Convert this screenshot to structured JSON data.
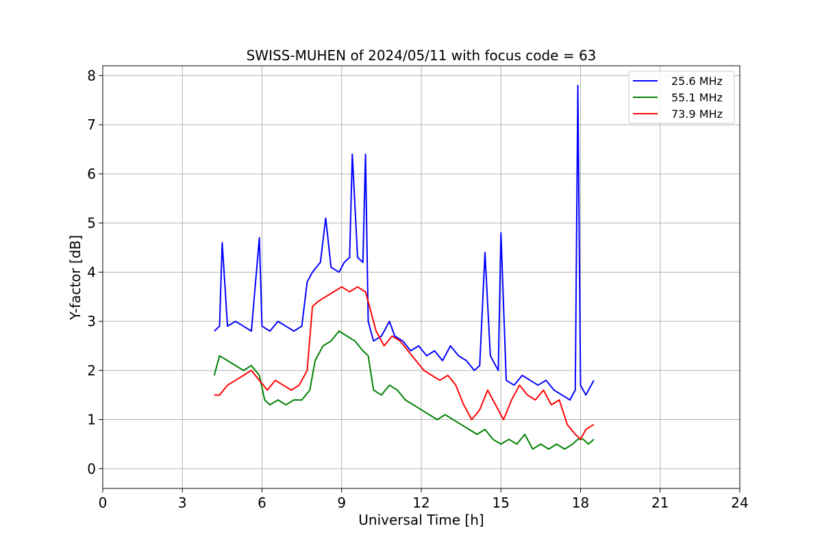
{
  "chart_data": {
    "type": "line",
    "title": "SWISS-MUHEN of 2024/05/11 with focus code = 63",
    "xlabel": "Universal Time [h]",
    "ylabel": "Y-factor [dB]",
    "xlim": [
      0,
      24
    ],
    "ylim": [
      -0.4,
      8.2
    ],
    "xticks": [
      0,
      3,
      6,
      9,
      12,
      15,
      18,
      21,
      24
    ],
    "yticks": [
      0,
      1,
      2,
      3,
      4,
      5,
      6,
      7,
      8
    ],
    "xtick_labels": [
      "0",
      "3",
      "6",
      "9",
      "12",
      "15",
      "18",
      "21",
      "24"
    ],
    "ytick_labels": [
      "0",
      "1",
      "2",
      "3",
      "4",
      "5",
      "6",
      "7",
      "8"
    ],
    "grid": true,
    "legend_position": "top-right",
    "series": [
      {
        "name": "25.6 MHz",
        "color": "#0000ff",
        "x": [
          4.2,
          4.4,
          4.5,
          4.7,
          5.0,
          5.3,
          5.6,
          5.9,
          6.0,
          6.3,
          6.6,
          6.9,
          7.2,
          7.5,
          7.7,
          7.9,
          8.2,
          8.4,
          8.6,
          8.9,
          9.1,
          9.3,
          9.4,
          9.6,
          9.8,
          9.9,
          10.0,
          10.2,
          10.5,
          10.8,
          11.0,
          11.3,
          11.6,
          11.9,
          12.2,
          12.5,
          12.8,
          13.1,
          13.4,
          13.7,
          14.0,
          14.2,
          14.4,
          14.6,
          14.9,
          15.0,
          15.2,
          15.5,
          15.8,
          16.1,
          16.4,
          16.7,
          17.0,
          17.3,
          17.6,
          17.8,
          17.9,
          18.0,
          18.2,
          18.5
        ],
        "y": [
          2.8,
          2.9,
          4.6,
          2.9,
          3.0,
          2.9,
          2.8,
          4.7,
          2.9,
          2.8,
          3.0,
          2.9,
          2.8,
          2.9,
          3.8,
          4.0,
          4.2,
          5.1,
          4.1,
          4.0,
          4.2,
          4.3,
          6.4,
          4.3,
          4.2,
          6.4,
          3.0,
          2.6,
          2.7,
          3.0,
          2.7,
          2.6,
          2.4,
          2.5,
          2.3,
          2.4,
          2.2,
          2.5,
          2.3,
          2.2,
          2.0,
          2.1,
          4.4,
          2.3,
          2.0,
          4.8,
          1.8,
          1.7,
          1.9,
          1.8,
          1.7,
          1.8,
          1.6,
          1.5,
          1.4,
          1.6,
          7.8,
          1.7,
          1.5,
          1.8
        ]
      },
      {
        "name": "55.1 MHz",
        "color": "#008000",
        "x": [
          4.2,
          4.4,
          4.7,
          5.0,
          5.3,
          5.6,
          5.9,
          6.1,
          6.3,
          6.6,
          6.9,
          7.2,
          7.5,
          7.8,
          8.0,
          8.3,
          8.6,
          8.9,
          9.2,
          9.5,
          9.8,
          10.0,
          10.2,
          10.5,
          10.8,
          11.1,
          11.4,
          11.7,
          12.0,
          12.3,
          12.6,
          12.9,
          13.2,
          13.5,
          13.8,
          14.1,
          14.4,
          14.7,
          15.0,
          15.3,
          15.6,
          15.9,
          16.2,
          16.5,
          16.8,
          17.1,
          17.4,
          17.7,
          17.9,
          18.1,
          18.3,
          18.5
        ],
        "y": [
          1.9,
          2.3,
          2.2,
          2.1,
          2.0,
          2.1,
          1.9,
          1.4,
          1.3,
          1.4,
          1.3,
          1.4,
          1.4,
          1.6,
          2.2,
          2.5,
          2.6,
          2.8,
          2.7,
          2.6,
          2.4,
          2.3,
          1.6,
          1.5,
          1.7,
          1.6,
          1.4,
          1.3,
          1.2,
          1.1,
          1.0,
          1.1,
          1.0,
          0.9,
          0.8,
          0.7,
          0.8,
          0.6,
          0.5,
          0.6,
          0.5,
          0.7,
          0.4,
          0.5,
          0.4,
          0.5,
          0.4,
          0.5,
          0.6,
          0.6,
          0.5,
          0.6
        ]
      },
      {
        "name": "73.9 MHz",
        "color": "#ff0000",
        "x": [
          4.2,
          4.4,
          4.7,
          5.0,
          5.3,
          5.6,
          5.9,
          6.2,
          6.5,
          6.8,
          7.1,
          7.4,
          7.7,
          7.9,
          8.1,
          8.4,
          8.7,
          9.0,
          9.3,
          9.6,
          9.9,
          10.1,
          10.3,
          10.6,
          10.9,
          11.2,
          11.5,
          11.8,
          12.1,
          12.4,
          12.7,
          13.0,
          13.3,
          13.6,
          13.9,
          14.2,
          14.5,
          14.8,
          15.1,
          15.4,
          15.7,
          16.0,
          16.3,
          16.6,
          16.9,
          17.2,
          17.5,
          17.8,
          18.0,
          18.2,
          18.5
        ],
        "y": [
          1.5,
          1.5,
          1.7,
          1.8,
          1.9,
          2.0,
          1.8,
          1.6,
          1.8,
          1.7,
          1.6,
          1.7,
          2.0,
          3.3,
          3.4,
          3.5,
          3.6,
          3.7,
          3.6,
          3.7,
          3.6,
          3.2,
          2.8,
          2.5,
          2.7,
          2.6,
          2.4,
          2.2,
          2.0,
          1.9,
          1.8,
          1.9,
          1.7,
          1.3,
          1.0,
          1.2,
          1.6,
          1.3,
          1.0,
          1.4,
          1.7,
          1.5,
          1.4,
          1.6,
          1.3,
          1.4,
          0.9,
          0.7,
          0.6,
          0.8,
          0.9
        ]
      }
    ]
  }
}
